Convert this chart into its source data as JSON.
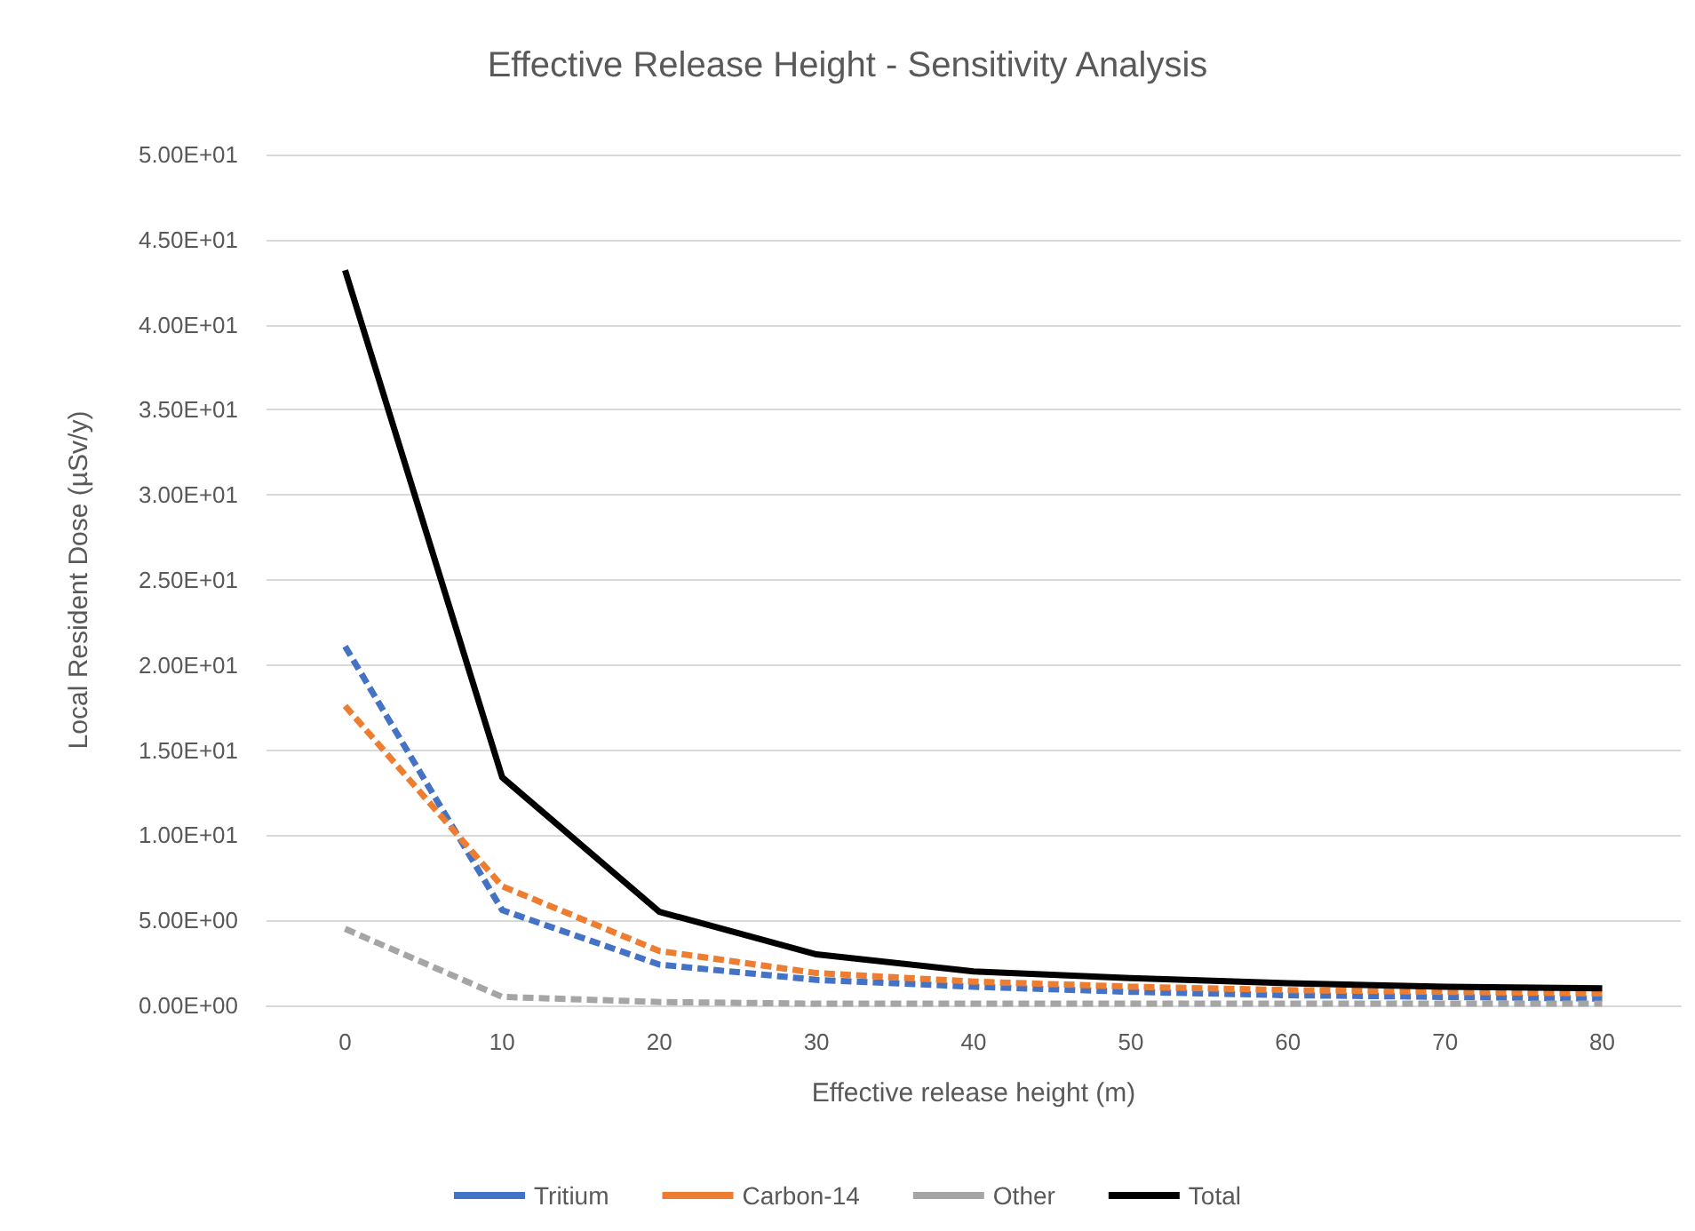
{
  "chart_data": {
    "type": "line",
    "title": "Effective Release Height - Sensitivity Analysis",
    "xlabel": "Effective release height (m)",
    "ylabel": "Local Resident Dose (µSv/y)",
    "categories": [
      "0",
      "10",
      "20",
      "30",
      "40",
      "50",
      "60",
      "70",
      "80"
    ],
    "series": [
      {
        "name": "Tritium",
        "color": "#4472c4",
        "line_style": "dashed",
        "values": [
          21.1,
          5.6,
          2.4,
          1.5,
          1.1,
          0.8,
          0.6,
          0.5,
          0.4
        ]
      },
      {
        "name": "Carbon-14",
        "color": "#ed7d31",
        "line_style": "dashed",
        "values": [
          17.6,
          7.0,
          3.2,
          1.9,
          1.4,
          1.1,
          0.9,
          0.8,
          0.7
        ]
      },
      {
        "name": "Other",
        "color": "#a5a5a5",
        "line_style": "dashed",
        "values": [
          4.5,
          0.5,
          0.2,
          0.1,
          0.1,
          0.1,
          0.1,
          0.1,
          0.1
        ]
      },
      {
        "name": "Total",
        "color": "#000000",
        "line_style": "solid",
        "values": [
          43.2,
          13.4,
          5.5,
          3.0,
          2.0,
          1.6,
          1.3,
          1.1,
          1.0
        ]
      }
    ],
    "ylim": [
      0,
      50
    ],
    "yticks": [
      {
        "value": 0,
        "label": "0.00E+00"
      },
      {
        "value": 5,
        "label": "5.00E+00"
      },
      {
        "value": 10,
        "label": "1.00E+01"
      },
      {
        "value": 15,
        "label": "1.50E+01"
      },
      {
        "value": 20,
        "label": "2.00E+01"
      },
      {
        "value": 25,
        "label": "2.50E+01"
      },
      {
        "value": 30,
        "label": "3.00E+01"
      },
      {
        "value": 35,
        "label": "3.50E+01"
      },
      {
        "value": 40,
        "label": "4.00E+01"
      },
      {
        "value": 45,
        "label": "4.50E+01"
      },
      {
        "value": 50,
        "label": "5.00E+01"
      }
    ],
    "grid": "y",
    "legend": "bottom",
    "marker": "none"
  }
}
